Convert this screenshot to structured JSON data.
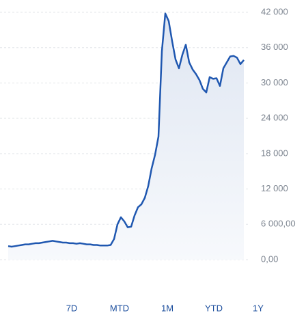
{
  "chart_data": {
    "type": "line",
    "values": [
      2300,
      2200,
      2300,
      2400,
      2500,
      2600,
      2600,
      2700,
      2800,
      2800,
      2900,
      3000,
      3100,
      3200,
      3100,
      3000,
      2900,
      2900,
      2800,
      2800,
      2700,
      2800,
      2700,
      2600,
      2600,
      2500,
      2500,
      2400,
      2400,
      2400,
      2500,
      3500,
      6000,
      7200,
      6500,
      5500,
      5600,
      7500,
      8900,
      9400,
      10500,
      12500,
      15500,
      17800,
      20900,
      35400,
      41800,
      40500,
      37100,
      34000,
      32500,
      34800,
      36500,
      33500,
      32300,
      31500,
      30500,
      29000,
      28400,
      31000,
      30700,
      30800,
      29500,
      32500,
      33500,
      34500,
      34600,
      34300,
      33200,
      33900
    ],
    "color": "#1f57b0",
    "ylim": [
      0,
      42000
    ],
    "yticks": [
      {
        "value": 0,
        "label": "0,00"
      },
      {
        "value": 6000,
        "label": "6 000,00"
      },
      {
        "value": 12000,
        "label": "12 000"
      },
      {
        "value": 18000,
        "label": "18 000"
      },
      {
        "value": 24000,
        "label": "24 000"
      },
      {
        "value": 30000,
        "label": "30 000"
      },
      {
        "value": 36000,
        "label": "36 000"
      },
      {
        "value": 42000,
        "label": "42 000"
      }
    ],
    "grid": true
  },
  "range_options": [
    "7D",
    "MTD",
    "1M",
    "YTD",
    "1Y"
  ]
}
